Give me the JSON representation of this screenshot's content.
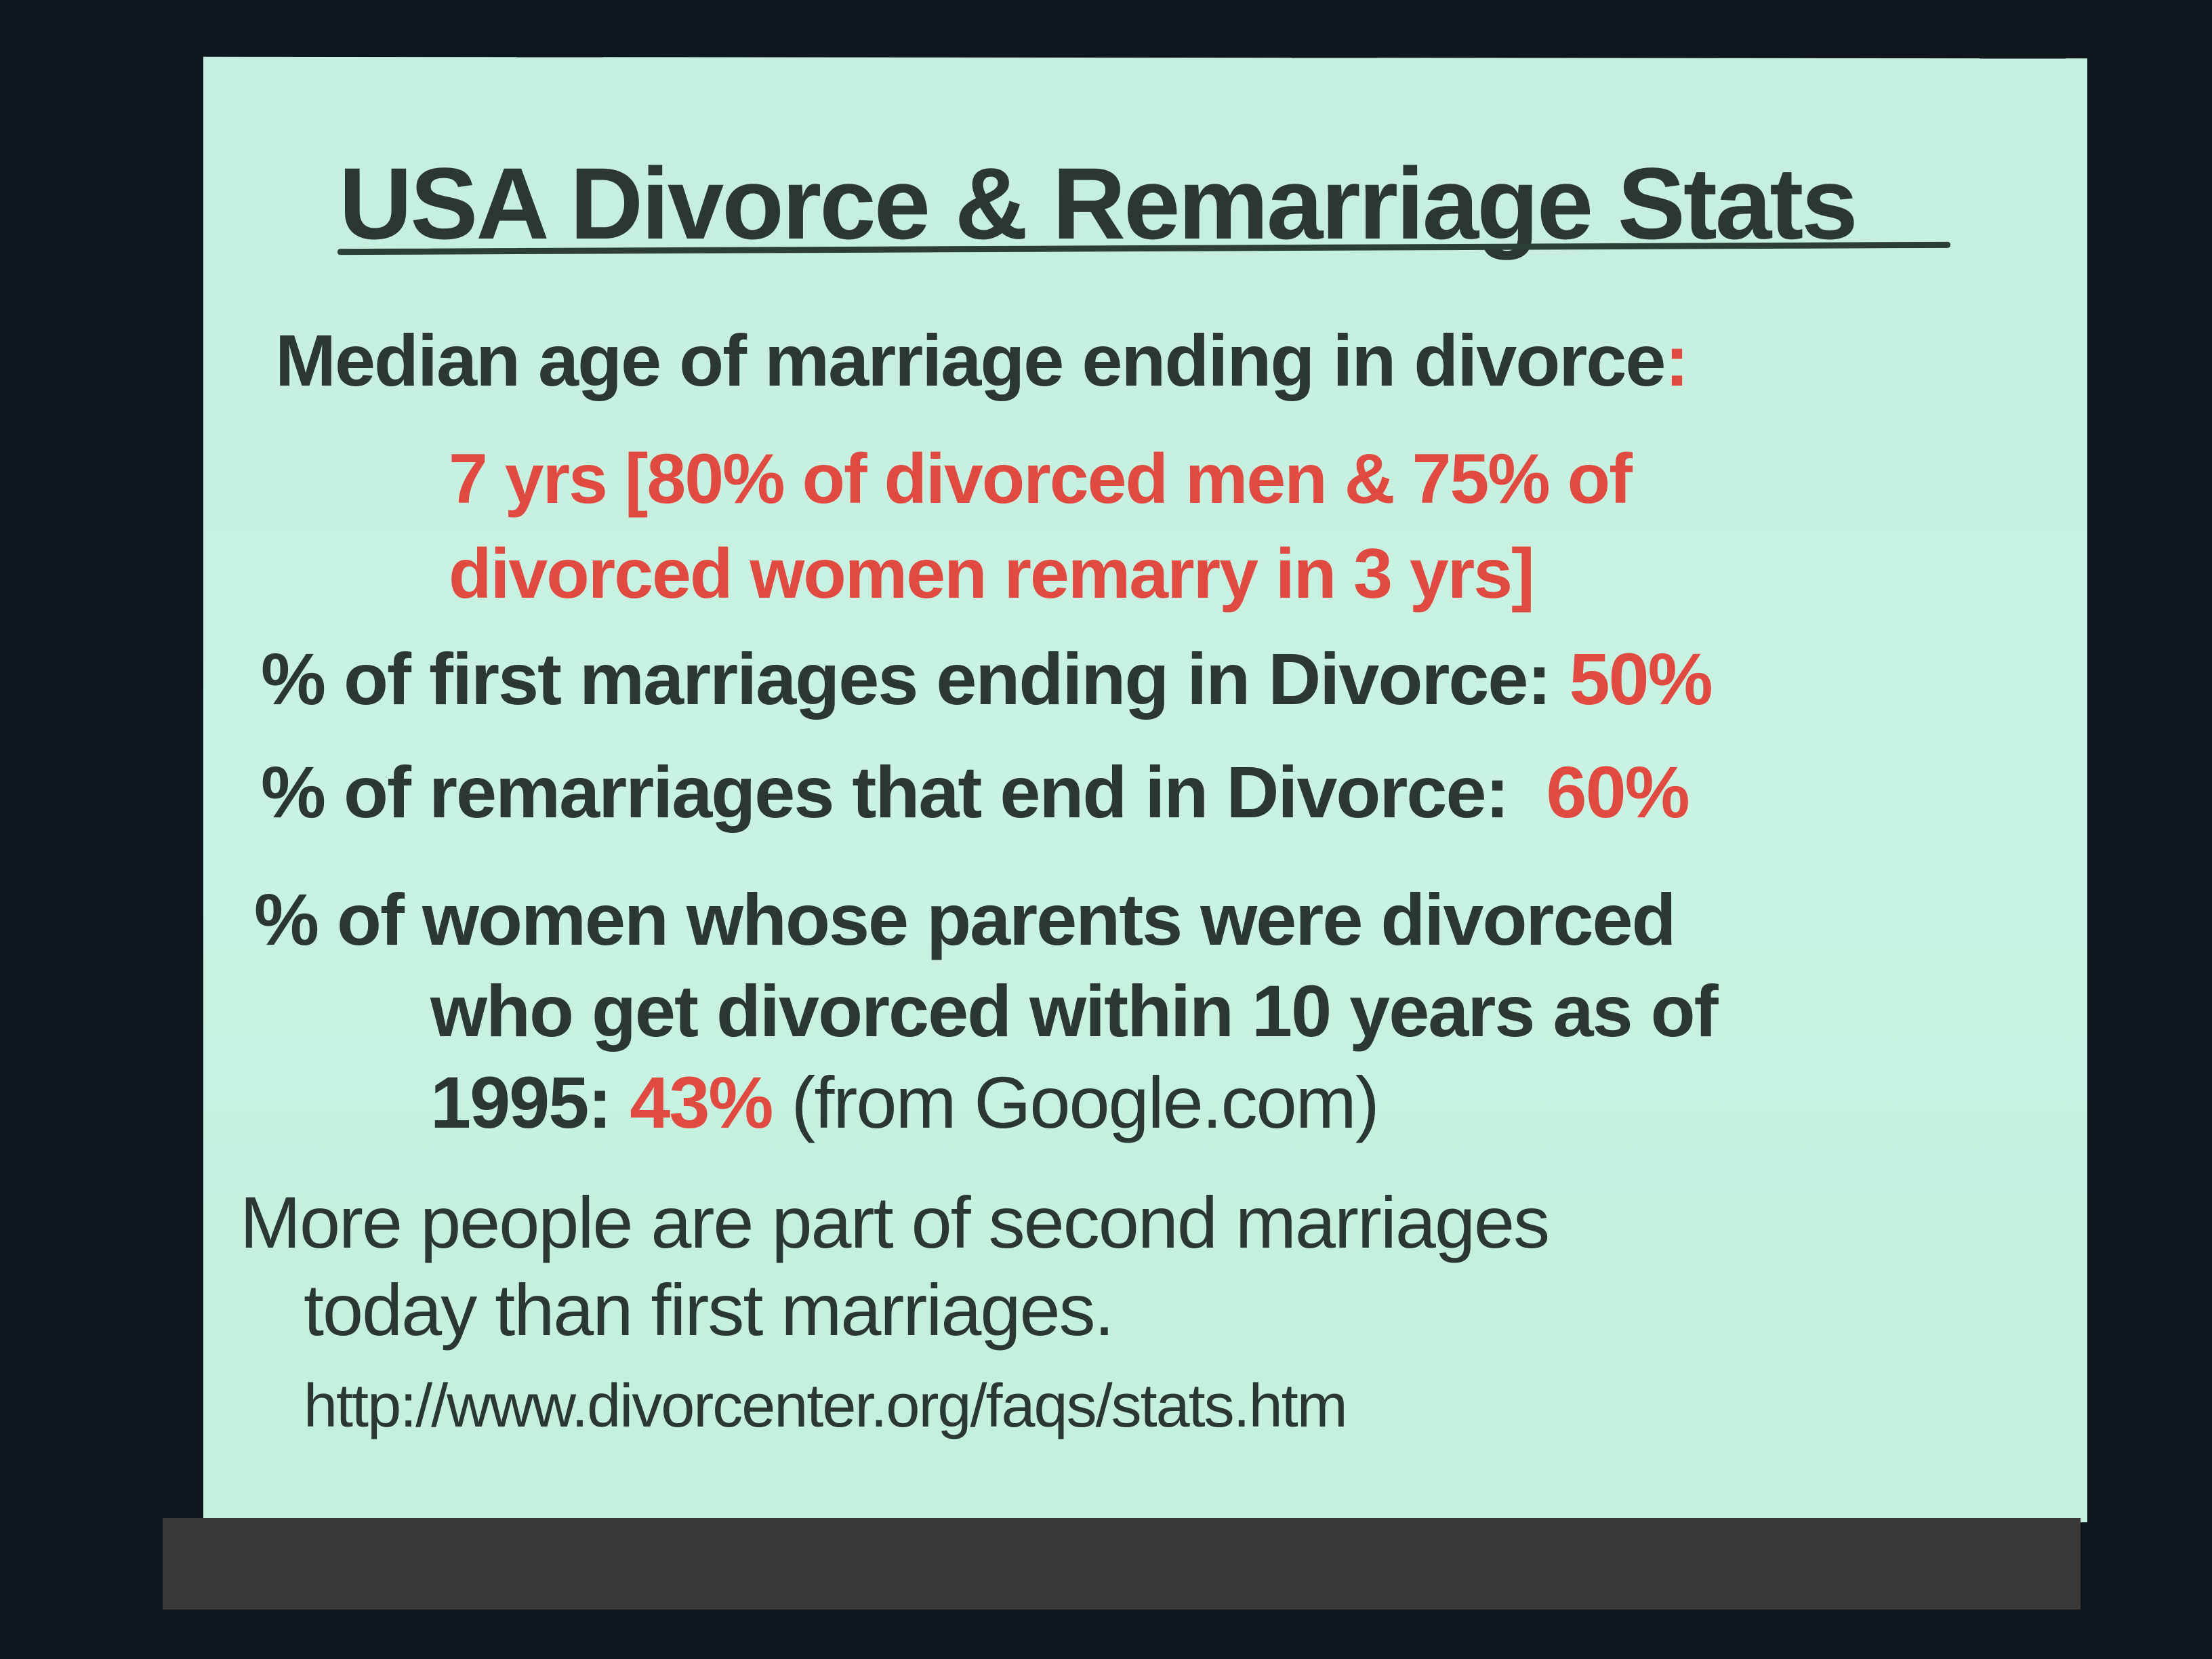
{
  "slide": {
    "title": "USA Divorce & Remarriage Stats",
    "item1": {
      "label": "Median age of marriage ending in divorce",
      "colon": ":",
      "line1": "7 yrs [80% of divorced men & 75% of",
      "line2": "divorced women remarry in 3 yrs]"
    },
    "item2": {
      "label": "% of first marriages ending in Divorce:",
      "value": "50%"
    },
    "item3": {
      "label": "% of remarriages that end in Divorce:",
      "value": "60%"
    },
    "item4": {
      "line1": "% of women whose parents were divorced",
      "line2": "who get divorced within 10 years as of",
      "line3_prefix": "1995:",
      "value": "43%",
      "source": "(from Google.com)"
    },
    "item5": {
      "line1": "More people are part of second marriages",
      "line2": "today than first marriages.",
      "url": "http://www.divorcenter.org/faqs/stats.htm"
    },
    "colors": {
      "background": "#c8f0e0",
      "text": "#2b3733",
      "highlight": "#e04a40"
    }
  }
}
